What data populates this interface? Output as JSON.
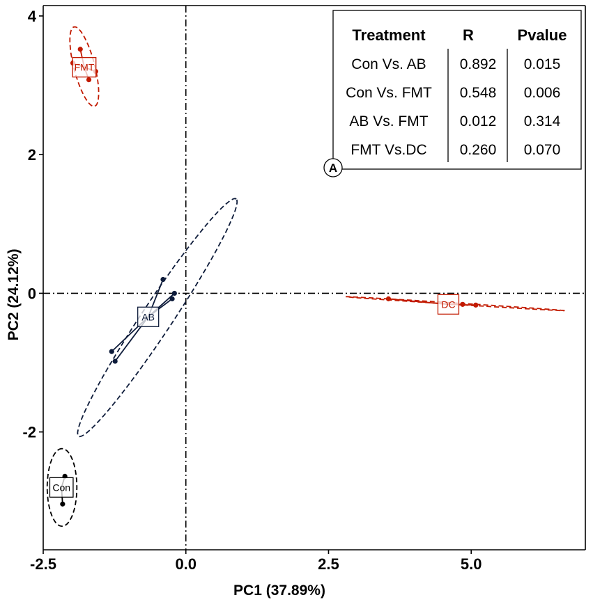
{
  "chart_data": {
    "type": "scatter",
    "title": "",
    "xlabel": "PC1 (37.89%)",
    "ylabel": "PC2 (24.12%)",
    "xlim": [
      -2.5,
      7.0
    ],
    "ylim": [
      -3.7,
      4.15
    ],
    "xticks": [
      -2.5,
      0.0,
      2.5,
      5.0
    ],
    "xtick_labels": [
      "-2.5",
      "0.0",
      "2.5",
      "5.0"
    ],
    "yticks": [
      -2,
      0,
      2,
      4
    ],
    "ytick_labels": [
      "-2",
      "0",
      "2",
      "4"
    ],
    "reference_lines": {
      "x": 0,
      "y": 0
    },
    "panel_label": "A",
    "colors": {
      "Con": "#000000",
      "AB": "#0d1b3a",
      "FMT": "#c21a00",
      "DC": "#c21a00"
    },
    "groups": [
      {
        "name": "FMT",
        "centroid": [
          -1.78,
          3.26
        ],
        "points": [
          [
            -1.85,
            3.52
          ],
          [
            -1.98,
            3.32
          ],
          [
            -1.58,
            3.2
          ],
          [
            -1.7,
            3.08
          ]
        ],
        "ellipse": {
          "center": [
            -1.78,
            3.27
          ],
          "semi_axes": [
            0.6,
            0.18
          ],
          "angle_deg": -72
        }
      },
      {
        "name": "AB",
        "centroid": [
          -0.66,
          -0.34
        ],
        "points": [
          [
            -0.4,
            0.2
          ],
          [
            -0.2,
            0.0
          ],
          [
            -0.24,
            -0.08
          ],
          [
            -1.3,
            -0.84
          ],
          [
            -1.24,
            -0.98
          ]
        ],
        "ellipse": {
          "center": [
            -0.5,
            -0.35
          ],
          "semi_axes": [
            2.2,
            0.25
          ],
          "angle_deg": 51
        }
      },
      {
        "name": "Con",
        "centroid": [
          -2.18,
          -2.8
        ],
        "points": [
          [
            -2.12,
            -2.64
          ],
          [
            -2.16,
            -3.04
          ]
        ],
        "ellipse": {
          "center": [
            -2.17,
            -2.8
          ],
          "semi_axes": [
            0.56,
            0.26
          ],
          "angle_deg": 90
        }
      },
      {
        "name": "DC",
        "centroid": [
          4.6,
          -0.16
        ],
        "points": [
          [
            3.55,
            -0.08
          ],
          [
            4.85,
            -0.16
          ],
          [
            5.08,
            -0.17
          ]
        ],
        "ellipse": {
          "center": [
            4.72,
            -0.15
          ],
          "semi_axes": [
            1.92,
            0.01
          ],
          "angle_deg": -3
        }
      }
    ],
    "table": {
      "headers": [
        "Treatment",
        "R",
        "Pvalue"
      ],
      "rows": [
        [
          "Con Vs. AB",
          "0.892",
          "0.015"
        ],
        [
          "Con Vs. FMT",
          "0.548",
          "0.006"
        ],
        [
          "AB Vs. FMT",
          "0.012",
          "0.314"
        ],
        [
          "FMT Vs.DC",
          "0.260",
          "0.070"
        ]
      ]
    }
  }
}
